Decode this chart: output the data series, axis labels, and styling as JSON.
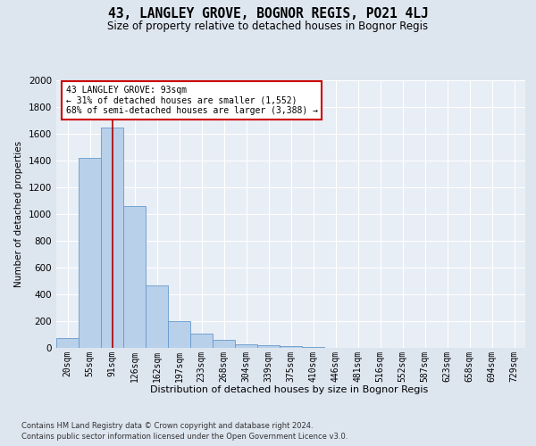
{
  "title": "43, LANGLEY GROVE, BOGNOR REGIS, PO21 4LJ",
  "subtitle": "Size of property relative to detached houses in Bognor Regis",
  "xlabel": "Distribution of detached houses by size in Bognor Regis",
  "ylabel": "Number of detached properties",
  "footnote1": "Contains HM Land Registry data © Crown copyright and database right 2024.",
  "footnote2": "Contains public sector information licensed under the Open Government Licence v3.0.",
  "bar_labels": [
    "20sqm",
    "55sqm",
    "91sqm",
    "126sqm",
    "162sqm",
    "197sqm",
    "233sqm",
    "268sqm",
    "304sqm",
    "339sqm",
    "375sqm",
    "410sqm",
    "446sqm",
    "481sqm",
    "516sqm",
    "552sqm",
    "587sqm",
    "623sqm",
    "658sqm",
    "694sqm",
    "729sqm"
  ],
  "bar_values": [
    75,
    1420,
    1650,
    1060,
    470,
    200,
    105,
    60,
    30,
    20,
    15,
    5,
    2,
    2,
    0,
    0,
    0,
    0,
    0,
    0,
    0
  ],
  "bar_color": "#b8d0ea",
  "bar_edge_color": "#6699cc",
  "vline_color": "#aa0000",
  "annotation_line1": "43 LANGLEY GROVE: 93sqm",
  "annotation_line2": "← 31% of detached houses are smaller (1,552)",
  "annotation_line3": "68% of semi-detached houses are larger (3,388) →",
  "annotation_box_color": "#ffffff",
  "annotation_box_edge": "#cc0000",
  "ylim": [
    0,
    2000
  ],
  "yticks": [
    0,
    200,
    400,
    600,
    800,
    1000,
    1200,
    1400,
    1600,
    1800,
    2000
  ],
  "bg_color": "#dde5ef",
  "plot_bg_color": "#e8eef5",
  "title_fontsize": 10.5,
  "subtitle_fontsize": 8.5
}
